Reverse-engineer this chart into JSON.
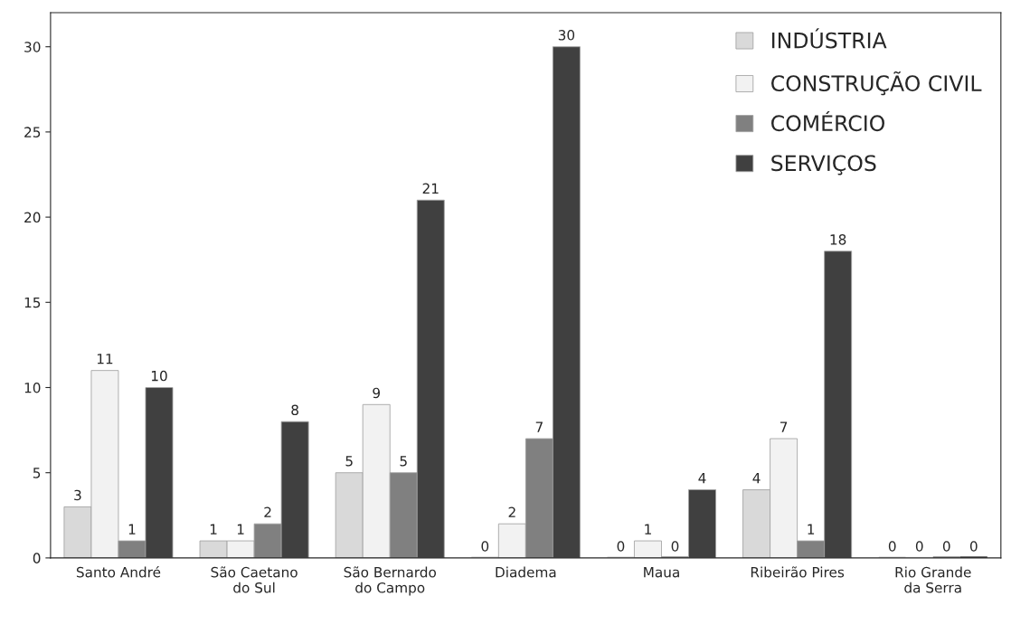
{
  "chart_data": {
    "type": "bar",
    "categories": [
      "Santo André",
      "São Caetano\ndo Sul",
      "São Bernardo\ndo Campo",
      "Diadema",
      "Maua",
      "Ribeirão Pires",
      "Rio Grande\nda Serra"
    ],
    "series": [
      {
        "name": "INDÚSTRIA",
        "color": "#d9d9d9",
        "values": [
          3,
          1,
          5,
          0,
          0,
          4,
          0
        ]
      },
      {
        "name": "CONSTRUÇÃO CIVIL",
        "color": "#f2f2f2",
        "values": [
          11,
          1,
          9,
          2,
          1,
          7,
          0
        ]
      },
      {
        "name": "COMÉRCIO",
        "color": "#808080",
        "values": [
          1,
          2,
          5,
          7,
          0,
          1,
          0
        ]
      },
      {
        "name": "SERVIÇOS",
        "color": "#404040",
        "values": [
          10,
          8,
          21,
          30,
          4,
          18,
          0
        ]
      }
    ],
    "ylim": [
      0,
      32
    ],
    "yticks": [
      0,
      5,
      10,
      15,
      20,
      25,
      30
    ],
    "data_labels": true,
    "legend": "top right",
    "grid": false
  }
}
